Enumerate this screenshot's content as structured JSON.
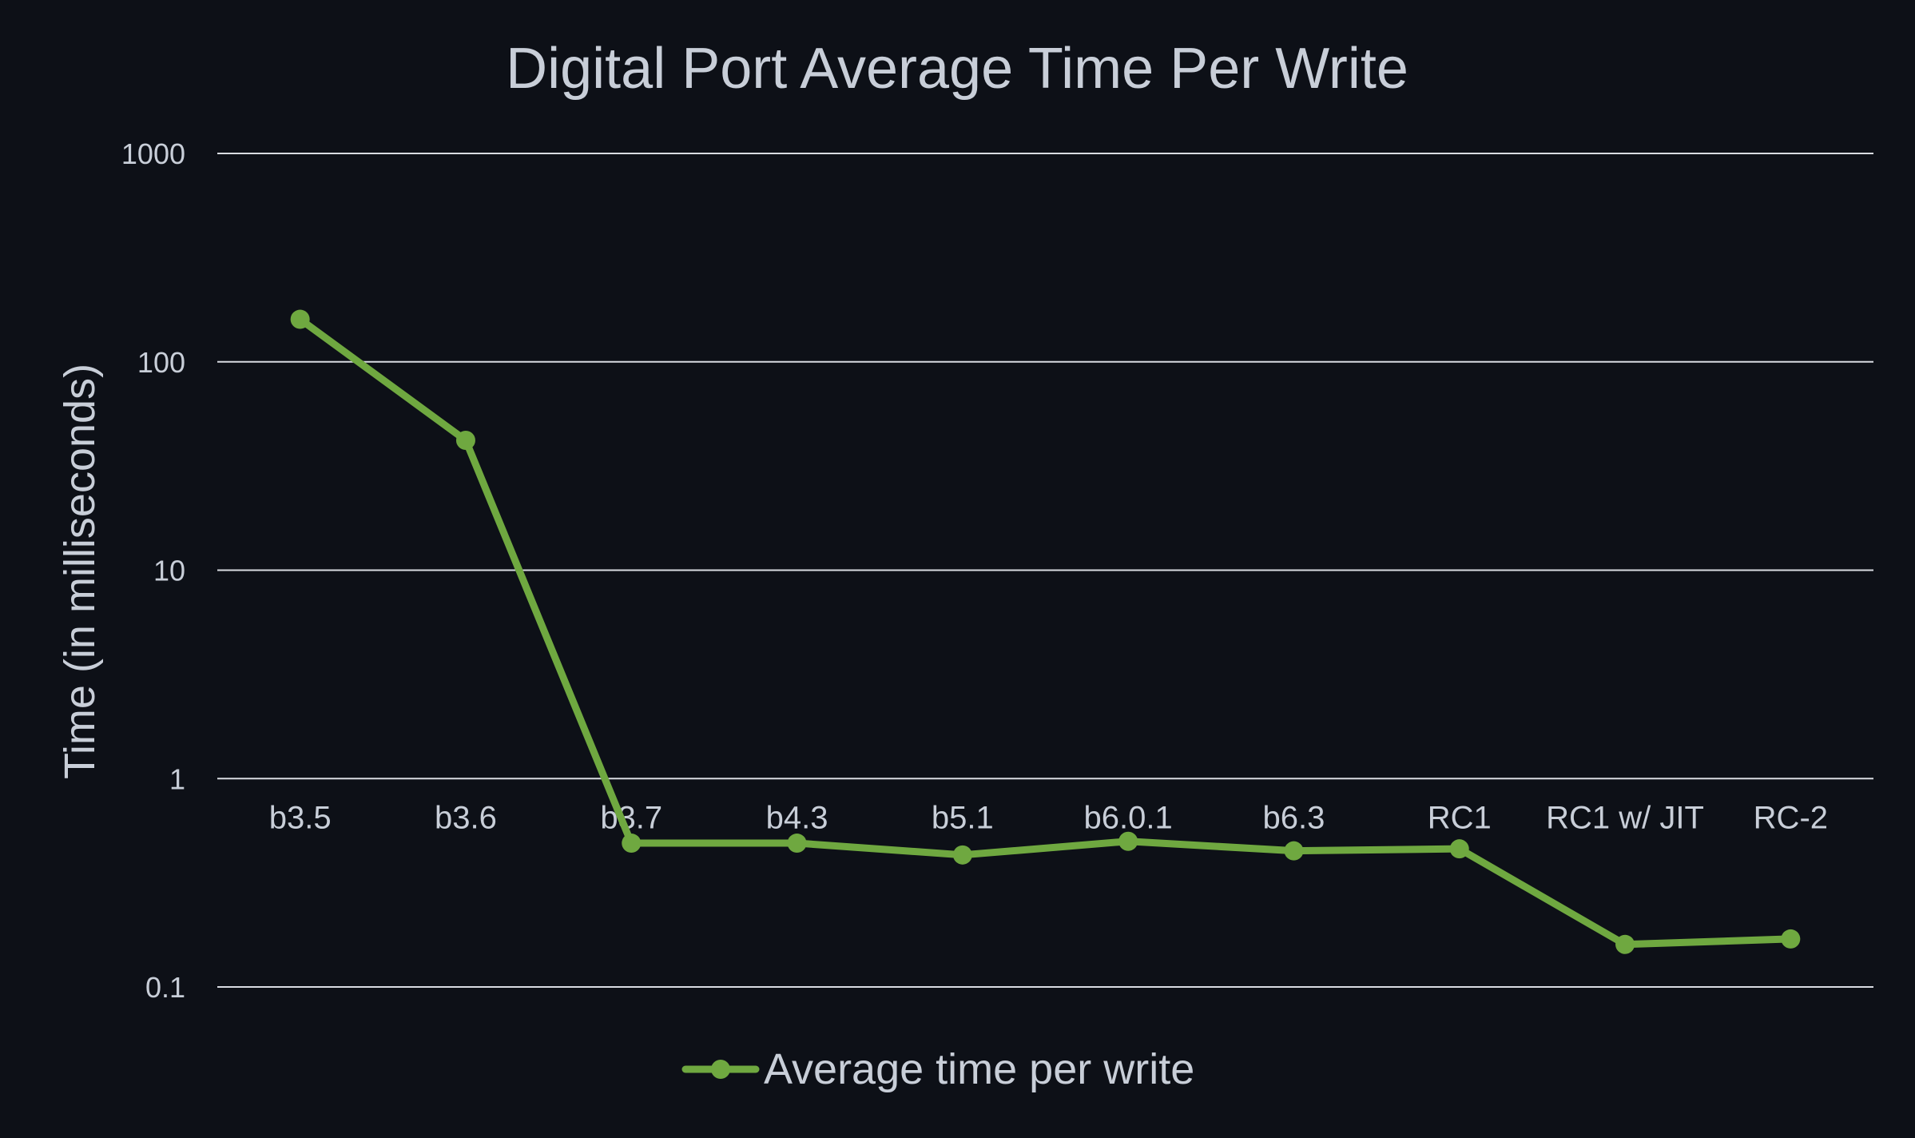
{
  "chart_data": {
    "type": "line",
    "title": "Digital Port Average Time Per Write",
    "xlabel": "",
    "ylabel": "Time (in milliseconds)",
    "yscale": "log",
    "ylim": [
      0.1,
      1000
    ],
    "yticks": [
      "1000",
      "100",
      "10",
      "1",
      "0.1"
    ],
    "ytick_values": [
      1000,
      100,
      10,
      1,
      0.1
    ],
    "grid": "horizontal",
    "legend": "bottom-center",
    "categories": [
      "b3.5",
      "b3.6",
      "b3.7",
      "b4.3",
      "b5.1",
      "b6.0.1",
      "b6.3",
      "RC1",
      "RC1 w/ JIT",
      "RC-2"
    ],
    "series": [
      {
        "name": "Average time per write",
        "color": "#6fa840",
        "values": [
          160,
          42,
          0.49,
          0.49,
          0.43,
          0.5,
          0.45,
          0.46,
          0.16,
          0.17
        ]
      }
    ]
  },
  "colors": {
    "background": "#0d1017",
    "text": "#c8ced8",
    "grid": "#d9dce2",
    "series": "#6fa840"
  }
}
